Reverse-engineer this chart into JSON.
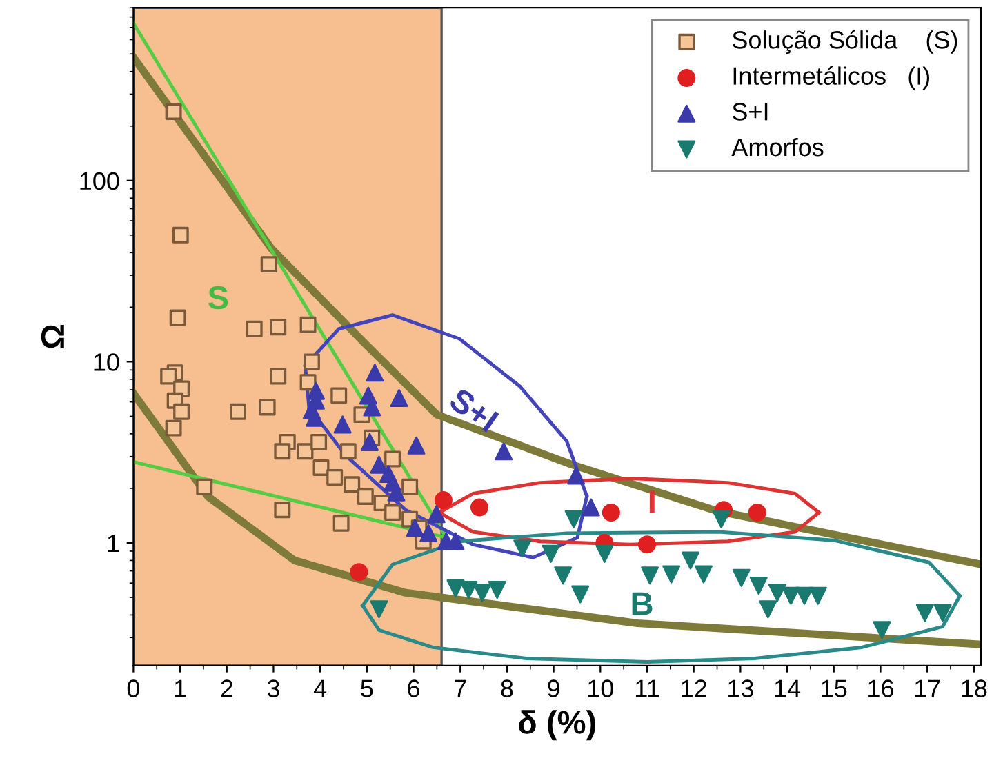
{
  "chart_data": {
    "type": "scatter",
    "xlabel": "δ (%)",
    "ylabel": "Ω",
    "log": "y",
    "grid": false,
    "legend": "top right",
    "xlim": [
      0,
      18.15
    ],
    "xticks": [
      0,
      1,
      2,
      3,
      4,
      5,
      6,
      7,
      8,
      9,
      10,
      11,
      12,
      13,
      14,
      15,
      16,
      17,
      18
    ],
    "ylim": [
      0.21,
      900
    ],
    "yticks": [
      1,
      10,
      100
    ],
    "bands": [
      {
        "axis": "x",
        "from": 0,
        "to": 6.6,
        "color": "#f7bf8f"
      }
    ],
    "series": [
      {
        "type": "line",
        "color": "#7d7a3a",
        "x": [
          0,
          2.96,
          5,
          6.5,
          9.4,
          12.5,
          18.15
        ],
        "values": [
          480,
          42,
          12.3,
          5.1,
          2.7,
          1.5,
          0.76
        ]
      },
      {
        "type": "line",
        "color": "#7d7a3a",
        "x": [
          0,
          1.6,
          3.45,
          5.83,
          10.8,
          18.15
        ],
        "values": [
          6.7,
          1.8,
          0.8,
          0.53,
          0.36,
          0.275
        ]
      },
      {
        "type": "line",
        "color": "#55cc44",
        "x": [
          0,
          6.7
        ],
        "values": [
          740,
          1.07
        ]
      },
      {
        "type": "line",
        "color": "#55cc44",
        "x": [
          0,
          6.7
        ],
        "values": [
          2.8,
          1.07
        ]
      },
      {
        "type": "line",
        "color": "#4444bb",
        "x": [
          3.68,
          4.4,
          5.55,
          6.98,
          8.28,
          9.28,
          9.71
        ],
        "values": [
          9.5,
          15.2,
          18.1,
          13.4,
          7.3,
          3.64,
          1.81
        ]
      },
      {
        "type": "line",
        "color": "#4444bb",
        "x": [
          3.68,
          3.76,
          4.54,
          5.83,
          7.27,
          8.56,
          9.51,
          9.71
        ],
        "values": [
          9.5,
          5.6,
          3.05,
          1.52,
          0.98,
          0.83,
          1.07,
          1.81
        ]
      },
      {
        "type": "line",
        "color": "#dd3333",
        "x": [
          6.55,
          7.27,
          8.71,
          10.63,
          12.73,
          14.17,
          14.68
        ],
        "values": [
          1.47,
          1.87,
          2.15,
          2.27,
          2.15,
          1.87,
          1.47
        ]
      },
      {
        "type": "line",
        "color": "#dd3333",
        "x": [
          6.55,
          7.27,
          8.71,
          10.63,
          12.73,
          14.17,
          14.68
        ],
        "values": [
          1.47,
          1.15,
          1.02,
          0.98,
          1.02,
          1.15,
          1.47
        ]
      },
      {
        "type": "line",
        "color": "#2a8a8a",
        "x": [
          4.91,
          5.55,
          6.98,
          9.28,
          12.53,
          15.03,
          17.04,
          17.7
        ],
        "values": [
          0.45,
          0.76,
          1.02,
          1.13,
          1.15,
          1.03,
          0.78,
          0.51
        ]
      },
      {
        "type": "line",
        "color": "#2a8a8a",
        "x": [
          4.91,
          5.26,
          6.41,
          8.42,
          11.0,
          13.3,
          15.6,
          17.33,
          17.7
        ],
        "values": [
          0.45,
          0.33,
          0.265,
          0.23,
          0.22,
          0.23,
          0.265,
          0.345,
          0.51
        ]
      },
      {
        "name": "Solução Sólida    (S)",
        "marker": "square",
        "color": "#7a5a3a",
        "x": [
          0.86,
          1.01,
          0.95,
          2.59,
          3.1,
          3.74,
          2.9,
          3.82,
          3.1,
          3.74,
          4.4,
          0.89,
          0.75,
          1.03,
          0.89,
          1.03,
          0.86,
          2.24,
          2.87,
          3.3,
          3.19,
          3.68,
          3.97,
          4.02,
          4.31,
          4.6,
          4.68,
          4.97,
          5.32,
          5.55,
          5.92,
          6.12,
          1.52,
          3.19,
          4.45,
          4.89,
          5.11,
          5.55,
          5.92,
          6.21
        ],
        "values": [
          240,
          50,
          17.5,
          15.2,
          15.5,
          16,
          34.5,
          10,
          8.3,
          7.7,
          6.5,
          8.7,
          8.3,
          7.1,
          6.1,
          5.3,
          4.3,
          5.3,
          5.6,
          3.6,
          3.2,
          3.2,
          3.6,
          2.6,
          2.3,
          3.2,
          2.1,
          1.8,
          1.66,
          1.47,
          1.35,
          1.21,
          2.04,
          1.52,
          1.28,
          5.1,
          3.8,
          2.9,
          2.04,
          1.02
        ]
      },
      {
        "name": "Intermetálicos   (I)",
        "marker": "circle",
        "color": "#e02020",
        "x": [
          4.83,
          6.64,
          7.41,
          10.23,
          10.09,
          11.0,
          12.64,
          13.36
        ],
        "values": [
          0.69,
          1.72,
          1.57,
          1.47,
          1.0,
          0.98,
          1.52,
          1.47
        ]
      },
      {
        "name": "S+I",
        "marker": "triangle",
        "color": "#3a3aaa",
        "x": [
          3.91,
          3.82,
          3.88,
          3.91,
          5.17,
          5.03,
          5.11,
          5.69,
          4.48,
          5.06,
          6.06,
          5.26,
          5.46,
          5.55,
          5.63,
          6.03,
          6.32,
          6.49,
          6.7,
          7.93,
          9.48,
          9.8,
          6.9
        ],
        "values": [
          6.1,
          5.4,
          4.9,
          6.9,
          8.7,
          6.5,
          5.6,
          6.3,
          4.5,
          3.6,
          3.45,
          2.7,
          2.4,
          2.15,
          1.9,
          1.21,
          1.13,
          1.44,
          1.02,
          3.2,
          2.35,
          1.57,
          1.02
        ]
      },
      {
        "name": "Amorfos",
        "marker": "triangle_down",
        "color": "#1a7a70",
        "x": [
          9.43,
          8.33,
          8.94,
          9.2,
          9.57,
          10.09,
          6.9,
          7.18,
          7.47,
          7.79,
          11.06,
          11.52,
          11.93,
          12.21,
          12.59,
          13.02,
          13.39,
          13.59,
          13.79,
          14.08,
          14.37,
          14.66,
          16.03,
          16.95,
          17.33,
          5.26
        ],
        "values": [
          1.35,
          0.93,
          0.87,
          0.66,
          0.52,
          0.87,
          0.56,
          0.55,
          0.53,
          0.55,
          0.66,
          0.67,
          0.8,
          0.67,
          1.35,
          0.64,
          0.58,
          0.43,
          0.53,
          0.51,
          0.51,
          0.51,
          0.33,
          0.41,
          0.41,
          0.43
        ]
      }
    ],
    "annotations": [
      "S",
      "S+I",
      "I",
      "B"
    ]
  }
}
